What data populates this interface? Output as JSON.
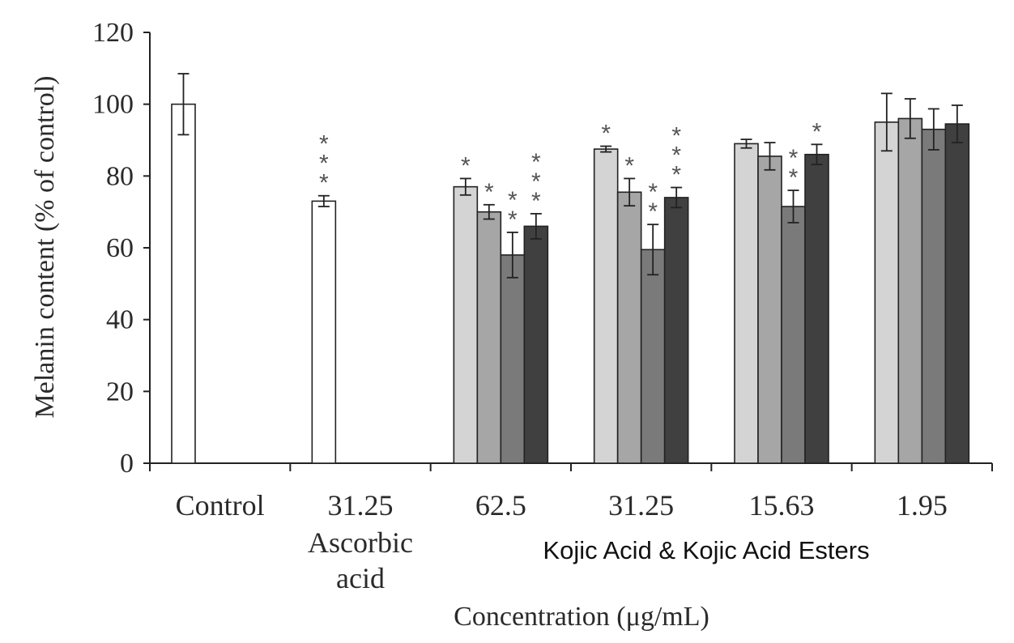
{
  "chart_data": {
    "type": "bar",
    "title": "",
    "ylabel": "Melanin content (% of control)",
    "xlabel": "Concentration (μg/mL)",
    "group_label": "Kojic Acid & Kojic Acid Esters",
    "ylim": [
      0,
      120
    ],
    "yticks": [
      0,
      20,
      40,
      60,
      80,
      100,
      120
    ],
    "grid": false,
    "legend": "none",
    "colors": [
      "#ffffff",
      "#d4d4d4",
      "#a6a6a6",
      "#7a7a7a",
      "#404040"
    ],
    "groups": [
      {
        "label": "Control",
        "sublabel": "",
        "bars": [
          {
            "value": 100,
            "error": 8.5,
            "color": "#ffffff",
            "sig": ""
          }
        ]
      },
      {
        "label": "31.25",
        "sublabel": "Ascorbic acid",
        "sublabel_lines": [
          "Ascorbic",
          "acid"
        ],
        "bars": [
          {
            "value": 73,
            "error": 1.5,
            "color": "#ffffff",
            "sig": "***"
          }
        ]
      },
      {
        "label": "62.5",
        "sublabel": "",
        "bars": [
          {
            "value": 77,
            "error": 2.3,
            "color": "#d4d4d4",
            "sig": "*"
          },
          {
            "value": 70,
            "error": 2.0,
            "color": "#a6a6a6",
            "sig": "*"
          },
          {
            "value": 58,
            "error": 6.3,
            "color": "#7a7a7a",
            "sig": "**"
          },
          {
            "value": 66,
            "error": 3.5,
            "color": "#404040",
            "sig": "***"
          }
        ]
      },
      {
        "label": "31.25",
        "sublabel": "",
        "bars": [
          {
            "value": 87.5,
            "error": 0.8,
            "color": "#d4d4d4",
            "sig": "*"
          },
          {
            "value": 75.5,
            "error": 3.8,
            "color": "#a6a6a6",
            "sig": "*"
          },
          {
            "value": 59.5,
            "error": 7.0,
            "color": "#7a7a7a",
            "sig": "**"
          },
          {
            "value": 74,
            "error": 2.8,
            "color": "#404040",
            "sig": "***"
          }
        ]
      },
      {
        "label": "15.63",
        "sublabel": "",
        "bars": [
          {
            "value": 89,
            "error": 1.2,
            "color": "#d4d4d4",
            "sig": ""
          },
          {
            "value": 85.5,
            "error": 3.8,
            "color": "#a6a6a6",
            "sig": ""
          },
          {
            "value": 71.5,
            "error": 4.5,
            "color": "#7a7a7a",
            "sig": "**"
          },
          {
            "value": 86,
            "error": 2.8,
            "color": "#404040",
            "sig": "*"
          }
        ]
      },
      {
        "label": "1.95",
        "sublabel": "",
        "bars": [
          {
            "value": 95,
            "error": 8.0,
            "color": "#d4d4d4",
            "sig": ""
          },
          {
            "value": 96,
            "error": 5.5,
            "color": "#a6a6a6",
            "sig": ""
          },
          {
            "value": 93,
            "error": 5.7,
            "color": "#7a7a7a",
            "sig": ""
          },
          {
            "value": 94.5,
            "error": 5.2,
            "color": "#404040",
            "sig": ""
          }
        ]
      }
    ]
  }
}
